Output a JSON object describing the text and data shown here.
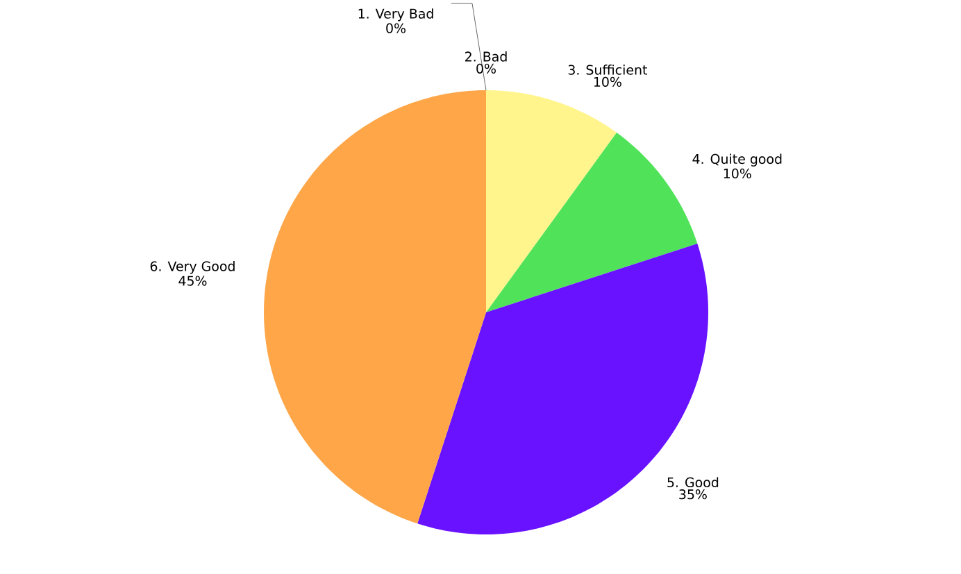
{
  "chart_data": {
    "type": "pie",
    "categories": [
      "1. Very Bad",
      "2. Bad",
      "3. Sufficient",
      "4. Quite good",
      "5. Good",
      "6. Very Good"
    ],
    "values": [
      0,
      0,
      10,
      10,
      35,
      45
    ],
    "value_labels": [
      "0%",
      "0%",
      "10%",
      "10%",
      "35%",
      "45%"
    ],
    "colors": [
      "#004586",
      "#ff420e",
      "#fff58c",
      "#50e35a",
      "#6812ff",
      "#fea648"
    ]
  }
}
